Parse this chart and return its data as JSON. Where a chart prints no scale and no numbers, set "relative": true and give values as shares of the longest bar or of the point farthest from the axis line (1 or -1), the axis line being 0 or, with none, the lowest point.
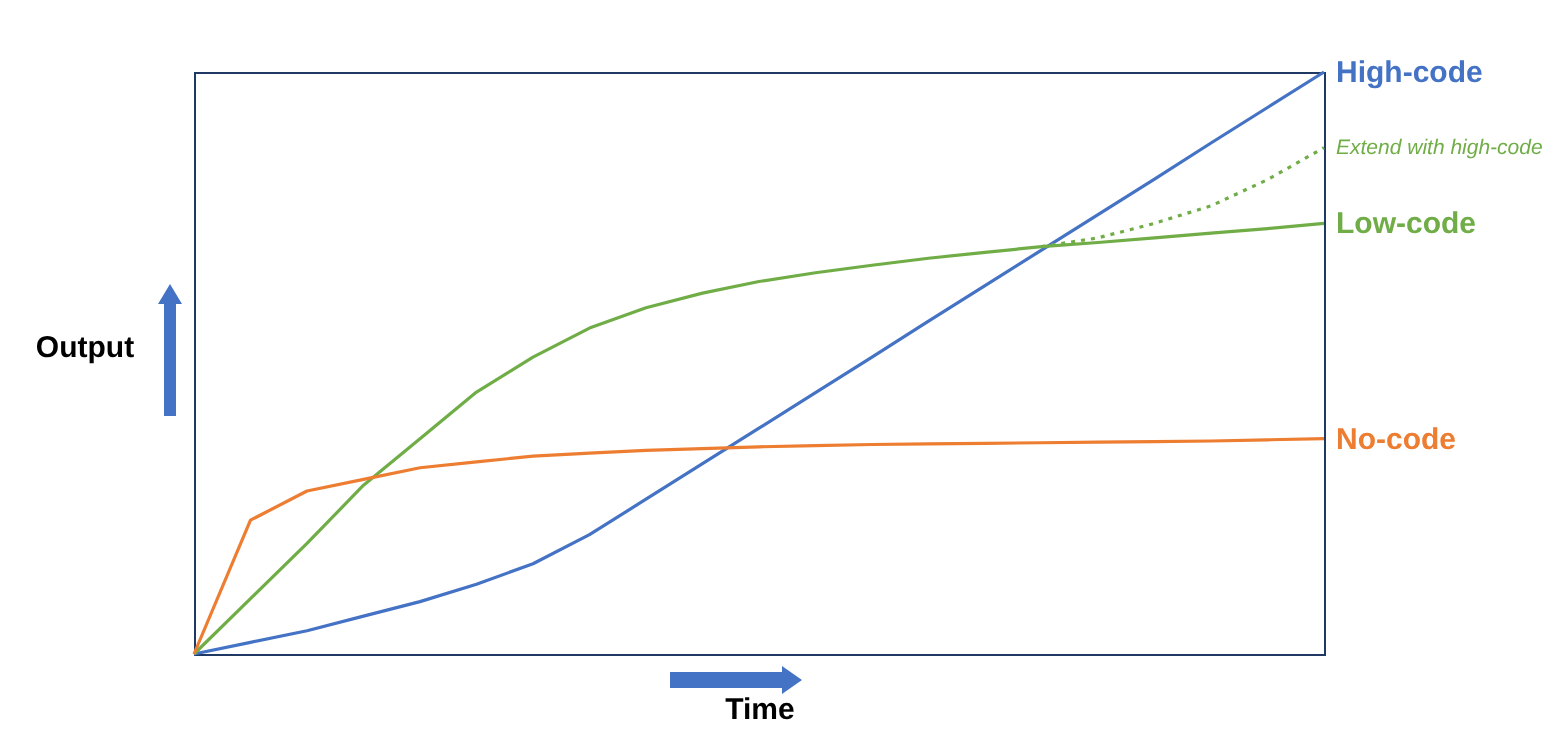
{
  "chart_data": {
    "type": "line",
    "relative": true,
    "xlabel": "Time",
    "ylabel": "Output",
    "categories": [
      null,
      null,
      null,
      null,
      null,
      null,
      null,
      null,
      null,
      null,
      null,
      null,
      null,
      null,
      null,
      null,
      null,
      null,
      null,
      null,
      null
    ],
    "series": [
      {
        "name": "High-code",
        "color": "#4472c4",
        "values": [
          0,
          0.02,
          0.04,
          0.065,
          0.09,
          0.12,
          0.155,
          0.205,
          0.266,
          0.327,
          0.388,
          0.449,
          0.51,
          0.572,
          0.633,
          0.694,
          0.755,
          0.816,
          0.878,
          0.939,
          1
        ]
      },
      {
        "name": "Extend with high-code",
        "color": "#70ad47",
        "line_style": "dotted",
        "values": [
          null,
          null,
          null,
          null,
          null,
          null,
          null,
          null,
          null,
          null,
          null,
          null,
          null,
          null,
          null,
          0.7,
          0.715,
          0.74,
          0.77,
          0.815,
          0.87
        ]
      },
      {
        "name": "Low-code",
        "color": "#70ad47",
        "values": [
          0,
          0.095,
          0.19,
          0.29,
          0.37,
          0.45,
          0.51,
          0.56,
          0.595,
          0.62,
          0.64,
          0.655,
          0.668,
          0.68,
          0.69,
          0.7,
          0.707,
          0.715,
          0.723,
          0.731,
          0.74
        ]
      },
      {
        "name": "No-code",
        "color": "#ed7d31",
        "values": [
          0,
          0.23,
          0.28,
          0.3,
          0.32,
          0.33,
          0.34,
          0.345,
          0.35,
          0.353,
          0.356,
          0.358,
          0.36,
          0.361,
          0.362,
          0.363,
          0.364,
          0.365,
          0.366,
          0.368,
          0.37
        ]
      }
    ]
  }
}
